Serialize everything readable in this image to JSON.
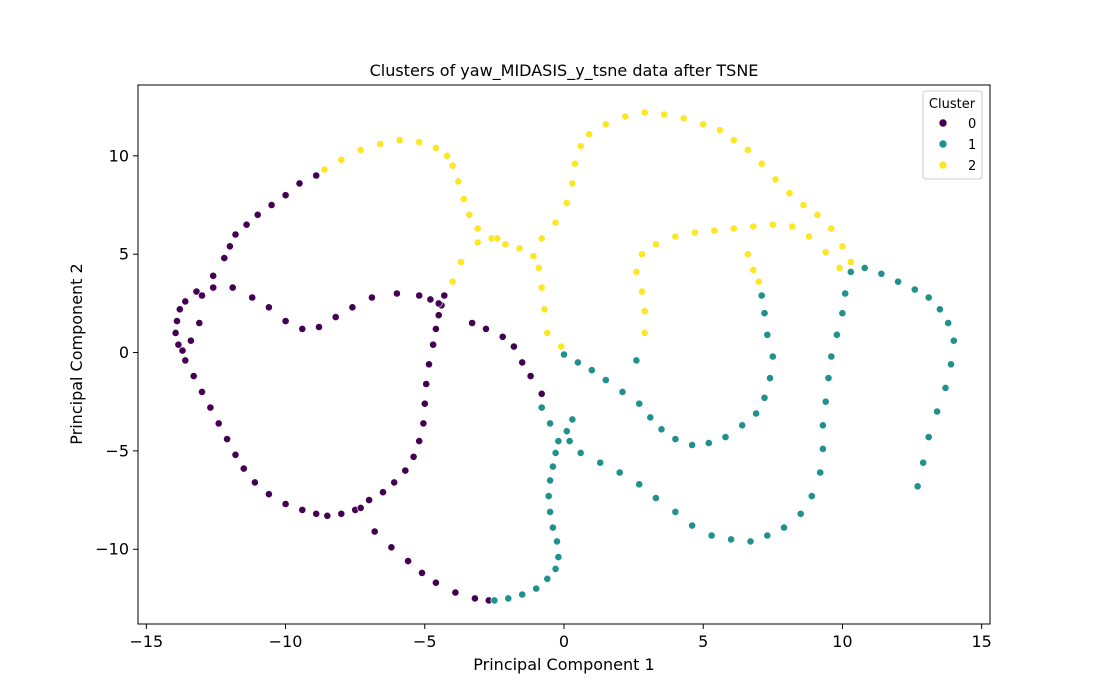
{
  "chart_data": {
    "type": "scatter",
    "title": "Clusters of yaw_MIDASIS_y_tsne data after TSNE",
    "xlabel": "Principal Component 1",
    "ylabel": "Principal Component 2",
    "xlim": [
      -15.3,
      15.3
    ],
    "ylim": [
      -13.8,
      13.6
    ],
    "xticks": [
      -15,
      -10,
      -5,
      0,
      5,
      10,
      15
    ],
    "xtick_labels": [
      "−15",
      "−10",
      "−5",
      "0",
      "5",
      "10",
      "15"
    ],
    "yticks": [
      -10,
      -5,
      0,
      5,
      10
    ],
    "ytick_labels": [
      "−10",
      "−5",
      "0",
      "5",
      "10"
    ],
    "grid": false,
    "legend": {
      "title": "Cluster",
      "placement": "upper right"
    },
    "series": [
      {
        "name": "0",
        "color": "#440154",
        "points": [
          [
            -8.9,
            9.0
          ],
          [
            -9.5,
            8.6
          ],
          [
            -10.0,
            8.0
          ],
          [
            -10.5,
            7.5
          ],
          [
            -11.0,
            7.0
          ],
          [
            -11.4,
            6.5
          ],
          [
            -11.8,
            6.0
          ],
          [
            -12.0,
            5.4
          ],
          [
            -12.2,
            4.8
          ],
          [
            -12.6,
            3.9
          ],
          [
            -13.2,
            3.1
          ],
          [
            -13.6,
            2.6
          ],
          [
            -13.8,
            2.2
          ],
          [
            -13.9,
            1.6
          ],
          [
            -13.95,
            1.0
          ],
          [
            -13.85,
            0.4
          ],
          [
            -13.6,
            -0.4
          ],
          [
            -13.3,
            -1.2
          ],
          [
            -13.0,
            -2.0
          ],
          [
            -12.7,
            -2.8
          ],
          [
            -12.4,
            -3.6
          ],
          [
            -12.1,
            -4.4
          ],
          [
            -11.8,
            -5.2
          ],
          [
            -11.5,
            -5.9
          ],
          [
            -11.1,
            -6.6
          ],
          [
            -10.6,
            -7.2
          ],
          [
            -10.0,
            -7.7
          ],
          [
            -9.4,
            -8.0
          ],
          [
            -8.9,
            -8.2
          ],
          [
            -8.5,
            -8.3
          ],
          [
            -8.0,
            -8.2
          ],
          [
            -7.5,
            -8.0
          ],
          [
            -7.0,
            -7.5
          ],
          [
            -6.5,
            -7.1
          ],
          [
            -6.1,
            -6.6
          ],
          [
            -5.7,
            -6.0
          ],
          [
            -5.4,
            -5.3
          ],
          [
            -5.2,
            -4.5
          ],
          [
            -5.05,
            -3.6
          ],
          [
            -5.0,
            -2.6
          ],
          [
            -4.95,
            -1.6
          ],
          [
            -4.85,
            -0.6
          ],
          [
            -4.7,
            0.4
          ],
          [
            -4.6,
            1.2
          ],
          [
            -4.5,
            1.9
          ],
          [
            -4.4,
            2.4
          ],
          [
            -4.3,
            2.9
          ],
          [
            -4.5,
            2.5
          ],
          [
            -4.8,
            2.7
          ],
          [
            -5.2,
            2.9
          ],
          [
            -6.0,
            3.0
          ],
          [
            -6.9,
            2.8
          ],
          [
            -7.6,
            2.3
          ],
          [
            -8.2,
            1.8
          ],
          [
            -8.8,
            1.3
          ],
          [
            -9.4,
            1.2
          ],
          [
            -10.0,
            1.6
          ],
          [
            -10.6,
            2.3
          ],
          [
            -11.2,
            2.8
          ],
          [
            -11.9,
            3.3
          ],
          [
            -12.6,
            3.3
          ],
          [
            -13.0,
            2.9
          ],
          [
            -13.1,
            1.5
          ],
          [
            -13.4,
            0.6
          ],
          [
            -13.7,
            0.1
          ],
          [
            -3.3,
            1.5
          ],
          [
            -2.8,
            1.2
          ],
          [
            -2.2,
            0.8
          ],
          [
            -1.8,
            0.3
          ],
          [
            -1.5,
            -0.5
          ],
          [
            -1.2,
            -1.2
          ],
          [
            -0.8,
            -2.1
          ],
          [
            -7.3,
            -7.9
          ],
          [
            -6.8,
            -9.1
          ],
          [
            -6.2,
            -9.9
          ],
          [
            -5.6,
            -10.6
          ],
          [
            -5.1,
            -11.2
          ],
          [
            -4.6,
            -11.7
          ],
          [
            -3.9,
            -12.2
          ],
          [
            -3.2,
            -12.5
          ],
          [
            -2.7,
            -12.6
          ]
        ]
      },
      {
        "name": "1",
        "color": "#21918c",
        "points": [
          [
            -2.5,
            -12.6
          ],
          [
            -2.0,
            -12.5
          ],
          [
            -1.5,
            -12.3
          ],
          [
            -1.0,
            -12.0
          ],
          [
            -0.6,
            -11.5
          ],
          [
            -0.3,
            -11.0
          ],
          [
            -0.2,
            -10.4
          ],
          [
            -0.25,
            -9.6
          ],
          [
            -0.4,
            -8.9
          ],
          [
            -0.5,
            -8.1
          ],
          [
            -0.55,
            -7.3
          ],
          [
            -0.5,
            -6.5
          ],
          [
            -0.4,
            -5.8
          ],
          [
            -0.3,
            -5.1
          ],
          [
            -0.2,
            -4.5
          ],
          [
            0.1,
            -4.0
          ],
          [
            0.3,
            -3.4
          ],
          [
            -0.8,
            -2.8
          ],
          [
            -0.5,
            -3.6
          ],
          [
            0.2,
            -4.5
          ],
          [
            0.6,
            -5.1
          ],
          [
            1.3,
            -5.6
          ],
          [
            2.0,
            -6.1
          ],
          [
            2.7,
            -6.7
          ],
          [
            3.3,
            -7.4
          ],
          [
            4.0,
            -8.1
          ],
          [
            4.6,
            -8.8
          ],
          [
            5.3,
            -9.3
          ],
          [
            6.0,
            -9.5
          ],
          [
            6.7,
            -9.6
          ],
          [
            7.3,
            -9.3
          ],
          [
            7.9,
            -8.9
          ],
          [
            8.5,
            -8.2
          ],
          [
            8.9,
            -7.3
          ],
          [
            9.2,
            -6.1
          ],
          [
            9.3,
            -4.9
          ],
          [
            9.3,
            -3.7
          ],
          [
            9.4,
            -2.5
          ],
          [
            9.5,
            -1.3
          ],
          [
            9.6,
            -0.2
          ],
          [
            9.8,
            0.9
          ],
          [
            10.0,
            2.0
          ],
          [
            10.1,
            3.0
          ],
          [
            10.3,
            4.1
          ],
          [
            10.8,
            4.3
          ],
          [
            11.4,
            4.0
          ],
          [
            12.0,
            3.6
          ],
          [
            12.6,
            3.2
          ],
          [
            13.1,
            2.8
          ],
          [
            13.5,
            2.2
          ],
          [
            13.8,
            1.5
          ],
          [
            14.0,
            0.6
          ],
          [
            13.9,
            -0.6
          ],
          [
            13.7,
            -1.8
          ],
          [
            13.4,
            -3.0
          ],
          [
            13.1,
            -4.3
          ],
          [
            12.9,
            -5.6
          ],
          [
            12.7,
            -6.8
          ],
          [
            0.0,
            -0.1
          ],
          [
            0.5,
            -0.5
          ],
          [
            1.0,
            -0.9
          ],
          [
            1.5,
            -1.4
          ],
          [
            2.1,
            -2.0
          ],
          [
            2.7,
            -2.6
          ],
          [
            3.1,
            -3.3
          ],
          [
            3.5,
            -3.9
          ],
          [
            4.0,
            -4.4
          ],
          [
            4.6,
            -4.7
          ],
          [
            5.2,
            -4.6
          ],
          [
            5.8,
            -4.3
          ],
          [
            6.4,
            -3.7
          ],
          [
            6.9,
            -3.1
          ],
          [
            7.2,
            -2.3
          ],
          [
            7.4,
            -1.3
          ],
          [
            7.5,
            -0.2
          ],
          [
            7.3,
            0.9
          ],
          [
            7.2,
            2.0
          ],
          [
            7.1,
            2.9
          ],
          [
            2.6,
            -0.4
          ]
        ]
      },
      {
        "name": "2",
        "color": "#fde725",
        "points": [
          [
            -8.6,
            9.3
          ],
          [
            -8.0,
            9.8
          ],
          [
            -7.3,
            10.3
          ],
          [
            -6.6,
            10.6
          ],
          [
            -5.9,
            10.8
          ],
          [
            -5.2,
            10.7
          ],
          [
            -4.6,
            10.4
          ],
          [
            -4.2,
            10.0
          ],
          [
            -4.0,
            9.5
          ],
          [
            -3.8,
            8.7
          ],
          [
            -3.6,
            7.8
          ],
          [
            -3.4,
            7.0
          ],
          [
            -3.1,
            6.3
          ],
          [
            -2.6,
            5.8
          ],
          [
            -2.1,
            5.5
          ],
          [
            -1.6,
            5.3
          ],
          [
            -1.1,
            4.9
          ],
          [
            -0.9,
            4.3
          ],
          [
            -0.8,
            3.3
          ],
          [
            -0.7,
            2.2
          ],
          [
            -0.6,
            1.0
          ],
          [
            -0.1,
            0.3
          ],
          [
            -4.0,
            3.6
          ],
          [
            -3.7,
            4.6
          ],
          [
            -3.1,
            5.6
          ],
          [
            -2.4,
            5.8
          ],
          [
            -0.8,
            5.8
          ],
          [
            -0.3,
            6.6
          ],
          [
            0.1,
            7.6
          ],
          [
            0.3,
            8.6
          ],
          [
            0.4,
            9.6
          ],
          [
            0.6,
            10.5
          ],
          [
            0.9,
            11.1
          ],
          [
            1.5,
            11.6
          ],
          [
            2.2,
            12.0
          ],
          [
            2.9,
            12.2
          ],
          [
            3.6,
            12.1
          ],
          [
            4.3,
            11.9
          ],
          [
            5.0,
            11.6
          ],
          [
            5.6,
            11.3
          ],
          [
            6.1,
            10.8
          ],
          [
            6.6,
            10.3
          ],
          [
            7.1,
            9.6
          ],
          [
            7.6,
            8.8
          ],
          [
            8.1,
            8.1
          ],
          [
            8.6,
            7.5
          ],
          [
            9.1,
            7.0
          ],
          [
            9.6,
            6.3
          ],
          [
            10.0,
            5.4
          ],
          [
            10.3,
            4.6
          ],
          [
            9.9,
            4.3
          ],
          [
            9.4,
            5.1
          ],
          [
            8.8,
            5.9
          ],
          [
            8.2,
            6.4
          ],
          [
            7.5,
            6.5
          ],
          [
            6.8,
            6.4
          ],
          [
            6.1,
            6.3
          ],
          [
            5.4,
            6.2
          ],
          [
            4.7,
            6.1
          ],
          [
            4.0,
            5.9
          ],
          [
            3.3,
            5.5
          ],
          [
            2.8,
            5.0
          ],
          [
            2.6,
            4.1
          ],
          [
            2.8,
            3.1
          ],
          [
            2.9,
            2.1
          ],
          [
            2.9,
            1.0
          ],
          [
            6.6,
            5.0
          ],
          [
            6.8,
            4.2
          ],
          [
            7.0,
            3.6
          ]
        ]
      }
    ]
  }
}
